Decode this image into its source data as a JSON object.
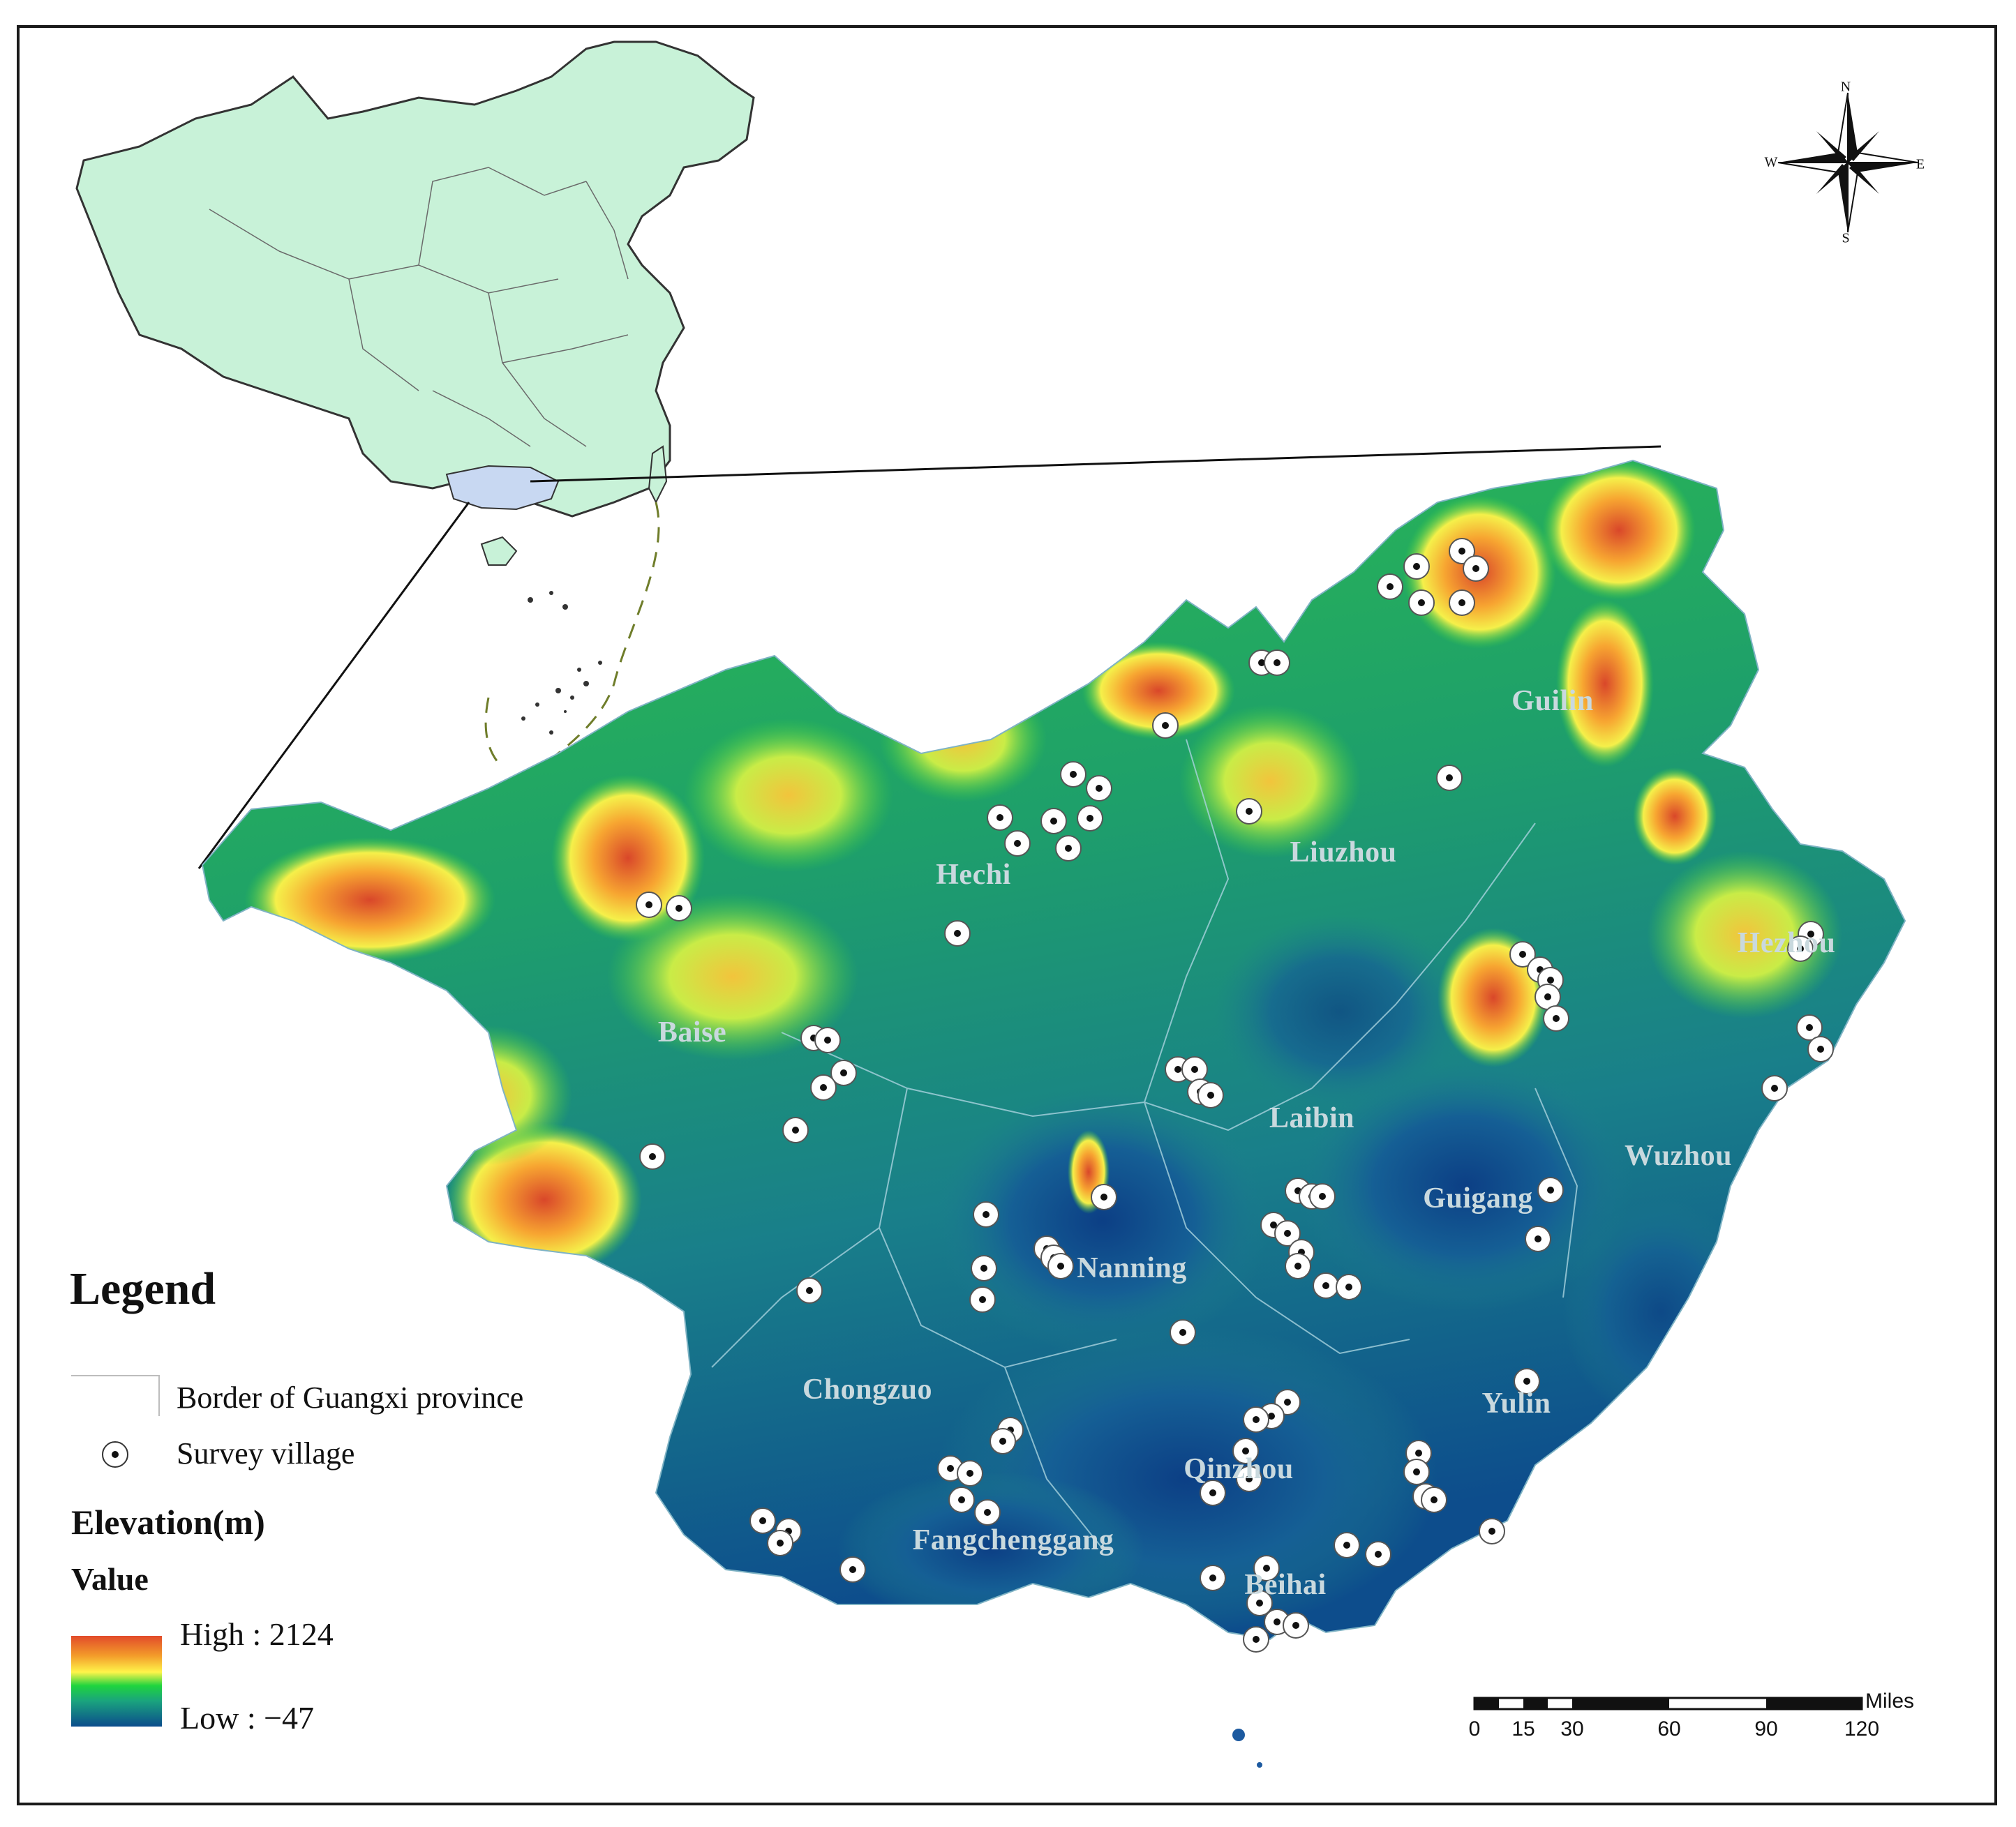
{
  "map": {
    "cities": [
      {
        "id": "guilin",
        "label": "Guilin"
      },
      {
        "id": "liuzhou",
        "label": "Liuzhou"
      },
      {
        "id": "hechi",
        "label": "Hechi"
      },
      {
        "id": "hezhou",
        "label": "Hezhou"
      },
      {
        "id": "baise",
        "label": "Baise"
      },
      {
        "id": "laibin",
        "label": "Laibin"
      },
      {
        "id": "wuzhou",
        "label": "Wuzhou"
      },
      {
        "id": "guigang",
        "label": "Guigang"
      },
      {
        "id": "nanning",
        "label": "Nanning"
      },
      {
        "id": "chongzuo",
        "label": "Chongzuo"
      },
      {
        "id": "yulin",
        "label": "Yulin"
      },
      {
        "id": "qinzhou",
        "label": "Qinzhou"
      },
      {
        "id": "fangchenggang",
        "label": "Fangchenggang"
      },
      {
        "id": "beihai",
        "label": "Beihai"
      }
    ],
    "compass": {
      "n": "N",
      "s": "S",
      "e": "E",
      "w": "W"
    },
    "colors": {
      "china_fill": "#c8f2d8",
      "guangxi_highlight": "#c8d8f2",
      "elevation_high": "#e24b2a",
      "elevation_mid_high": "#fff44a",
      "elevation_mid": "#1fd43e",
      "elevation_low": "#0b4c8c"
    }
  },
  "legend": {
    "title": "Legend",
    "border_label": "Border of Guangxi province",
    "village_label": "Survey village",
    "elevation_title": "Elevation(m)",
    "value_label": "Value",
    "high_label": "High : 2124",
    "low_label": "Low : −47"
  },
  "scale_bar": {
    "ticks": [
      "0",
      "15",
      "30",
      "60",
      "90",
      "120"
    ],
    "units": "Miles"
  }
}
